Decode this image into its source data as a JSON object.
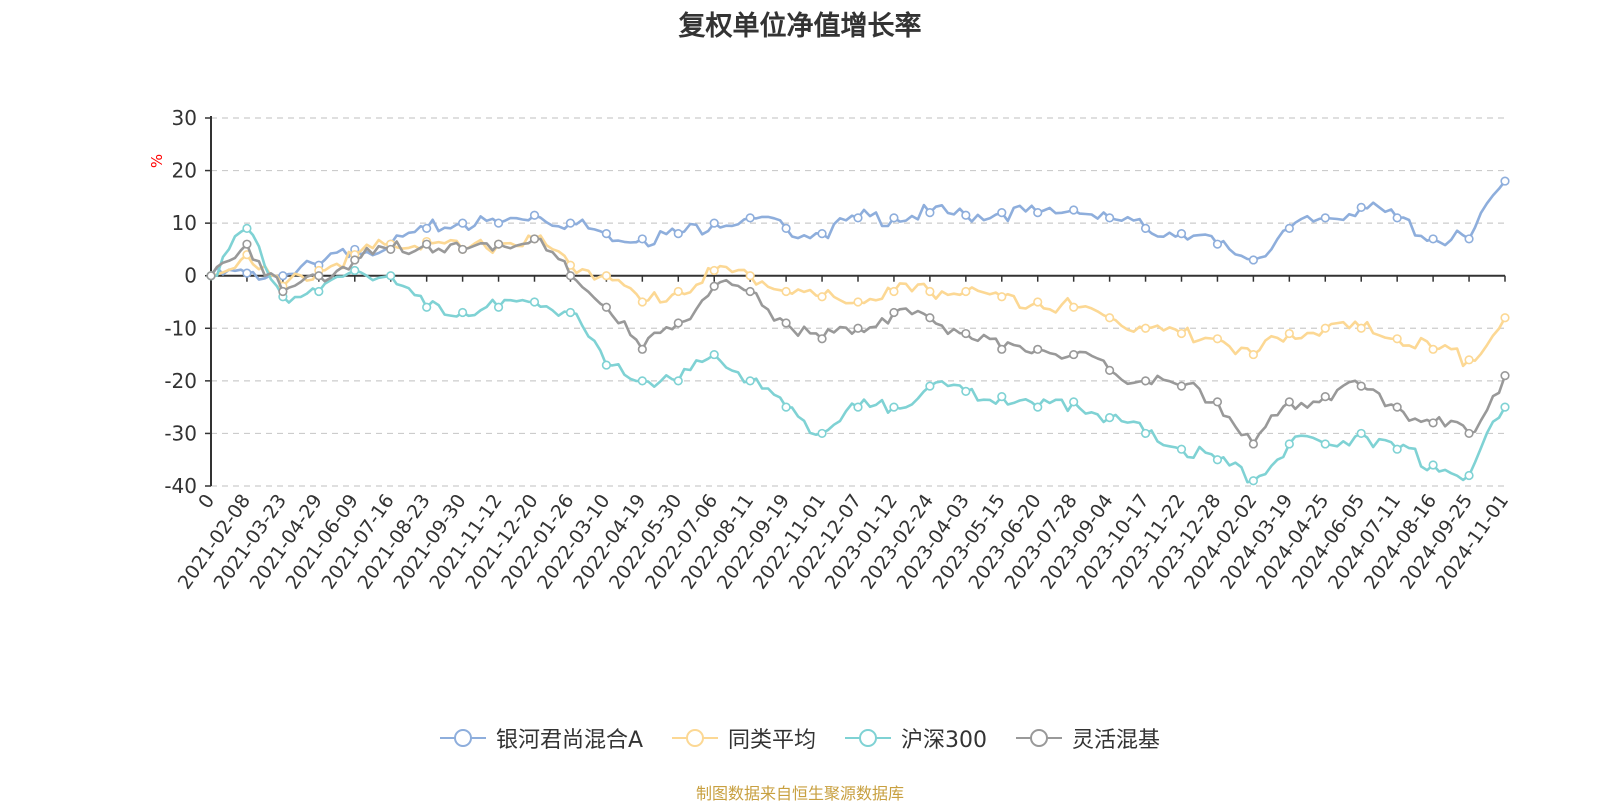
{
  "chart_data": {
    "type": "line",
    "title": "复权单位净值增长率",
    "ylabel": "%",
    "xlabel": "",
    "ylim": [
      -40,
      30
    ],
    "yticks": [
      "30",
      "20",
      "10",
      "0",
      "-10",
      "-20",
      "-30",
      "-40"
    ],
    "grid": true,
    "legend_position": "bottom",
    "categories": [
      "0",
      "2021-02-08",
      "2021-03-23",
      "2021-04-29",
      "2021-06-09",
      "2021-07-16",
      "2021-08-23",
      "2021-09-30",
      "2021-11-12",
      "2021-12-20",
      "2022-01-26",
      "2022-03-10",
      "2022-04-19",
      "2022-05-30",
      "2022-07-06",
      "2022-08-11",
      "2022-09-19",
      "2022-11-01",
      "2022-12-07",
      "2023-01-12",
      "2023-02-24",
      "2023-04-03",
      "2023-05-15",
      "2023-06-20",
      "2023-07-28",
      "2023-09-04",
      "2023-10-17",
      "2023-11-22",
      "2023-12-28",
      "2024-02-02",
      "2024-03-19",
      "2024-04-25",
      "2024-06-05",
      "2024-07-11",
      "2024-08-16",
      "2024-09-25",
      "2024-11-01"
    ],
    "series": [
      {
        "name": "银河君尚混合A",
        "color": "#8eaedc",
        "values": [
          0,
          0.5,
          0,
          2,
          5,
          6,
          9,
          10,
          10,
          11.5,
          10,
          8,
          7,
          8,
          10,
          11,
          9,
          8,
          11,
          11,
          12,
          11.5,
          12,
          12,
          12.5,
          11,
          9,
          8,
          6,
          3,
          9,
          11,
          13,
          11,
          7,
          7,
          18
        ]
      },
      {
        "name": "同类平均",
        "color": "#fcd894",
        "values": [
          0,
          4,
          -2,
          1,
          4,
          6,
          6.5,
          5,
          6,
          7,
          2,
          0,
          -5,
          -3,
          1,
          0,
          -3,
          -4,
          -5,
          -3,
          -3,
          -3,
          -4,
          -5,
          -6,
          -8,
          -10,
          -11,
          -12,
          -15,
          -11,
          -10,
          -10,
          -12,
          -14,
          -16,
          -8
        ]
      },
      {
        "name": "沪深300",
        "color": "#7fd2d4",
        "values": [
          0,
          9,
          -4,
          -3,
          1,
          0,
          -6,
          -7,
          -6,
          -5,
          -7,
          -17,
          -20,
          -20,
          -15,
          -20,
          -25,
          -30,
          -25,
          -25,
          -21,
          -22,
          -23,
          -25,
          -24,
          -27,
          -30,
          -33,
          -35,
          -39,
          -32,
          -32,
          -30,
          -33,
          -36,
          -38,
          -25
        ]
      },
      {
        "name": "灵活混基",
        "color": "#999999",
        "values": [
          0,
          6,
          -3,
          0,
          3,
          5,
          6,
          5,
          6,
          7,
          0,
          -6,
          -14,
          -9,
          -2,
          -3,
          -9,
          -12,
          -10,
          -7,
          -8,
          -11,
          -14,
          -14,
          -15,
          -18,
          -20,
          -21,
          -24,
          -32,
          -24,
          -23,
          -21,
          -25,
          -28,
          -30,
          -19
        ]
      }
    ]
  },
  "legend": [
    {
      "label": "银河君尚混合A",
      "color": "#8eaedc"
    },
    {
      "label": "同类平均",
      "color": "#fcd894"
    },
    {
      "label": "沪深300",
      "color": "#7fd2d4"
    },
    {
      "label": "灵活混基",
      "color": "#999999"
    }
  ],
  "source": "制图数据来自恒生聚源数据库"
}
